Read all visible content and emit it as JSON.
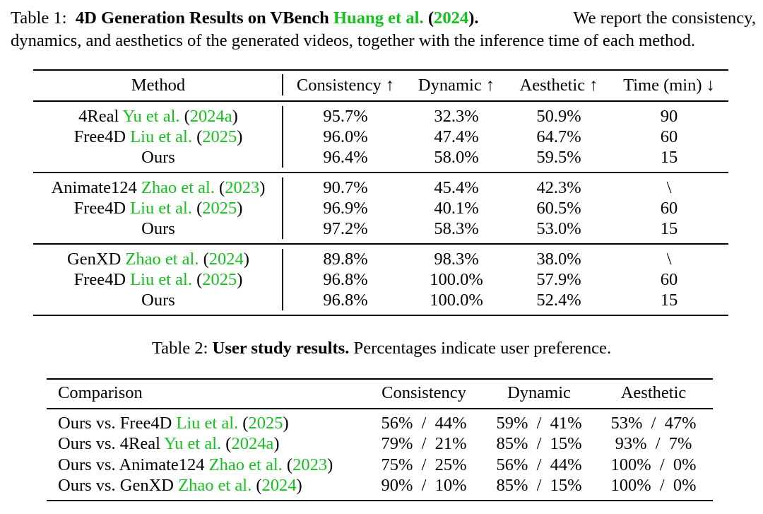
{
  "table1": {
    "caption": {
      "prefix": "Table 1:",
      "title": "4D Generation Results on VBench",
      "cite_author": "Huang et al.",
      "cite_year": "2024",
      "line1_rest": "We report the consistency,",
      "line2": "dynamics, and aesthetics of the generated videos, together with the inference time of each method."
    },
    "headers": [
      "Method",
      "Consistency ↑",
      "Dynamic ↑",
      "Aesthetic ↑",
      "Time (min) ↓"
    ],
    "groups": [
      {
        "rows": [
          {
            "name": "4Real",
            "cite_author": "Yu et al.",
            "cite_year": "2024a",
            "values": [
              "95.7%",
              "32.3%",
              "50.9%",
              "90"
            ]
          },
          {
            "name": "Free4D",
            "cite_author": "Liu et al.",
            "cite_year": "2025",
            "values": [
              "96.0%",
              "47.4%",
              "64.7%",
              "60"
            ]
          },
          {
            "name": "Ours",
            "cite_author": "",
            "cite_year": "",
            "values": [
              "96.4%",
              "58.0%",
              "59.5%",
              "15"
            ]
          }
        ]
      },
      {
        "rows": [
          {
            "name": "Animate124",
            "cite_author": "Zhao et al.",
            "cite_year": "2023",
            "values": [
              "90.7%",
              "45.4%",
              "42.3%",
              "\\"
            ]
          },
          {
            "name": "Free4D",
            "cite_author": "Liu et al.",
            "cite_year": "2025",
            "values": [
              "96.9%",
              "40.1%",
              "60.5%",
              "60"
            ]
          },
          {
            "name": "Ours",
            "cite_author": "",
            "cite_year": "",
            "values": [
              "97.2%",
              "58.3%",
              "53.0%",
              "15"
            ]
          }
        ]
      },
      {
        "rows": [
          {
            "name": "GenXD",
            "cite_author": "Zhao et al.",
            "cite_year": "2024",
            "values": [
              "89.8%",
              "98.3%",
              "38.0%",
              "\\"
            ]
          },
          {
            "name": "Free4D",
            "cite_author": "Liu et al.",
            "cite_year": "2025",
            "values": [
              "96.8%",
              "100.0%",
              "57.9%",
              "60"
            ]
          },
          {
            "name": "Ours",
            "cite_author": "",
            "cite_year": "",
            "values": [
              "96.8%",
              "100.0%",
              "52.4%",
              "15"
            ]
          }
        ]
      }
    ]
  },
  "table2": {
    "caption": {
      "prefix": "Table 2:",
      "title": "User study results.",
      "rest": "Percentages indicate user preference."
    },
    "headers": [
      "Comparison",
      "Consistency",
      "Dynamic",
      "Aesthetic"
    ],
    "rows": [
      {
        "prefix": "Ours vs. Free4D",
        "cite_author": "Liu et al.",
        "cite_year": "2025",
        "values": [
          "56%  /  44%",
          "59%  /  41%",
          "53%  /  47%"
        ]
      },
      {
        "prefix": "Ours vs. 4Real",
        "cite_author": "Yu et al.",
        "cite_year": "2024a",
        "values": [
          "79%  /  21%",
          "85%  /  15%",
          "93%  /  7%"
        ]
      },
      {
        "prefix": "Ours vs. Animate124",
        "cite_author": "Zhao et al.",
        "cite_year": "2023",
        "values": [
          "75%  /  25%",
          "56%  /  44%",
          "100%  /  0%"
        ]
      },
      {
        "prefix": "Ours vs. GenXD",
        "cite_author": "Zhao et al.",
        "cite_year": "2024",
        "values": [
          "90%  /  10%",
          "85%  /  15%",
          "100%  /  0%"
        ]
      }
    ]
  },
  "colors": {
    "citation": "#14c21e",
    "text": "#000000",
    "rule": "#000000"
  }
}
